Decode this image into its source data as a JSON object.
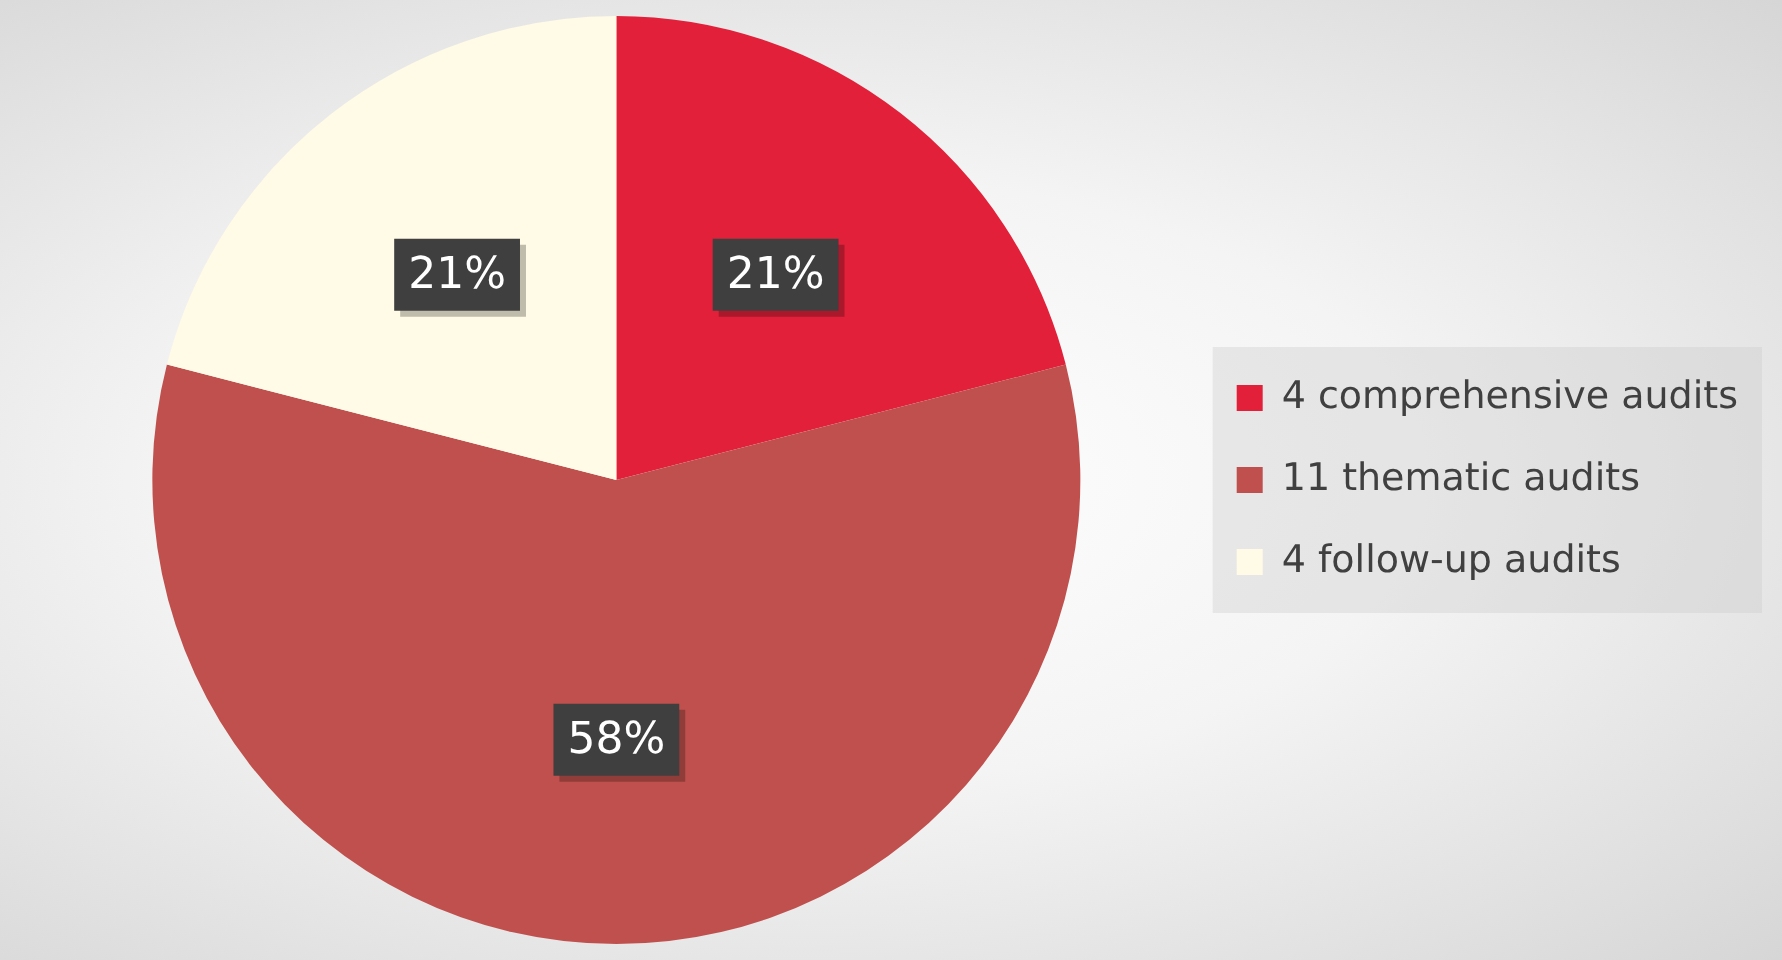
{
  "chart_data": {
    "type": "pie",
    "categories": [
      "4 comprehensive audits",
      "11 thematic audits",
      "4 follow-up audits"
    ],
    "values": [
      21,
      58,
      21
    ],
    "colors": [
      "#e2203a",
      "#c0504d",
      "#fffbe6"
    ],
    "value_labels": [
      "21%",
      "58%",
      "21%"
    ],
    "legend": "right"
  }
}
